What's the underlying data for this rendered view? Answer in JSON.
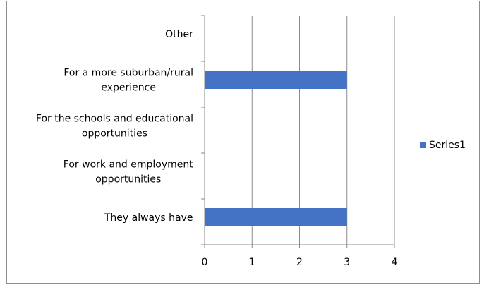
{
  "chart_data": {
    "type": "bar",
    "orientation": "horizontal",
    "categories": [
      [
        "They always have"
      ],
      [
        "For work and employment",
        "opportunities"
      ],
      [
        "For the schools and educational",
        "opportunities"
      ],
      [
        "For a more suburban/rural",
        "experience"
      ],
      [
        "Other"
      ]
    ],
    "series": [
      {
        "name": "Series1",
        "values": [
          3,
          0,
          0,
          3,
          0
        ],
        "color": "#4472c4"
      }
    ],
    "x_ticks": [
      "0",
      "1",
      "2",
      "3",
      "4"
    ],
    "xlim": [
      0,
      4
    ],
    "grid": true,
    "legend_position": "right",
    "title": "",
    "xlabel": "",
    "ylabel": ""
  }
}
